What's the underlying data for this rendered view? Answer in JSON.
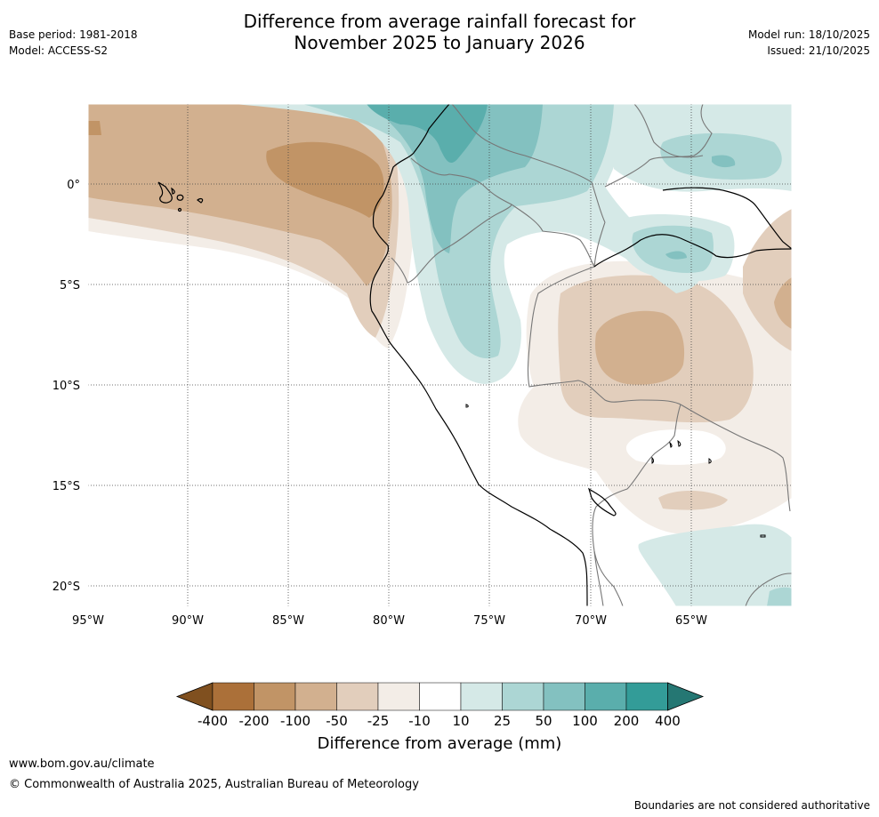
{
  "header": {
    "title_line1": "Difference from average rainfall forecast for",
    "title_line2": "November 2025 to January 2026",
    "base_period": "Base period: 1981-2018",
    "model": "Model: ACCESS-S2",
    "model_run": "Model run: 18/10/2025",
    "issued": "Issued: 21/10/2025"
  },
  "map": {
    "lon_labels": [
      "95°W",
      "90°W",
      "85°W",
      "80°W",
      "75°W",
      "70°W",
      "65°W"
    ],
    "lat_labels": [
      "0°",
      "5°S",
      "10°S",
      "15°S",
      "20°S"
    ]
  },
  "colorbar": {
    "label": "Difference from average (mm)",
    "ticks": [
      "-400",
      "-200",
      "-100",
      "-50",
      "-25",
      "-10",
      "10",
      "25",
      "50",
      "100",
      "200",
      "400"
    ],
    "colors": [
      "#80501f",
      "#ab7039",
      "#c19466",
      "#d2b08f",
      "#e2cebc",
      "#f3ede7",
      "#ffffff",
      "#d5e9e7",
      "#acd6d4",
      "#83c1c0",
      "#5aaeac",
      "#339c98",
      "#257773"
    ]
  },
  "footer": {
    "url": "www.bom.gov.au/climate",
    "copyright": "© Commonwealth of Australia 2025, Australian Bureau of Meteorology",
    "note": "Boundaries are not considered authoritative"
  }
}
